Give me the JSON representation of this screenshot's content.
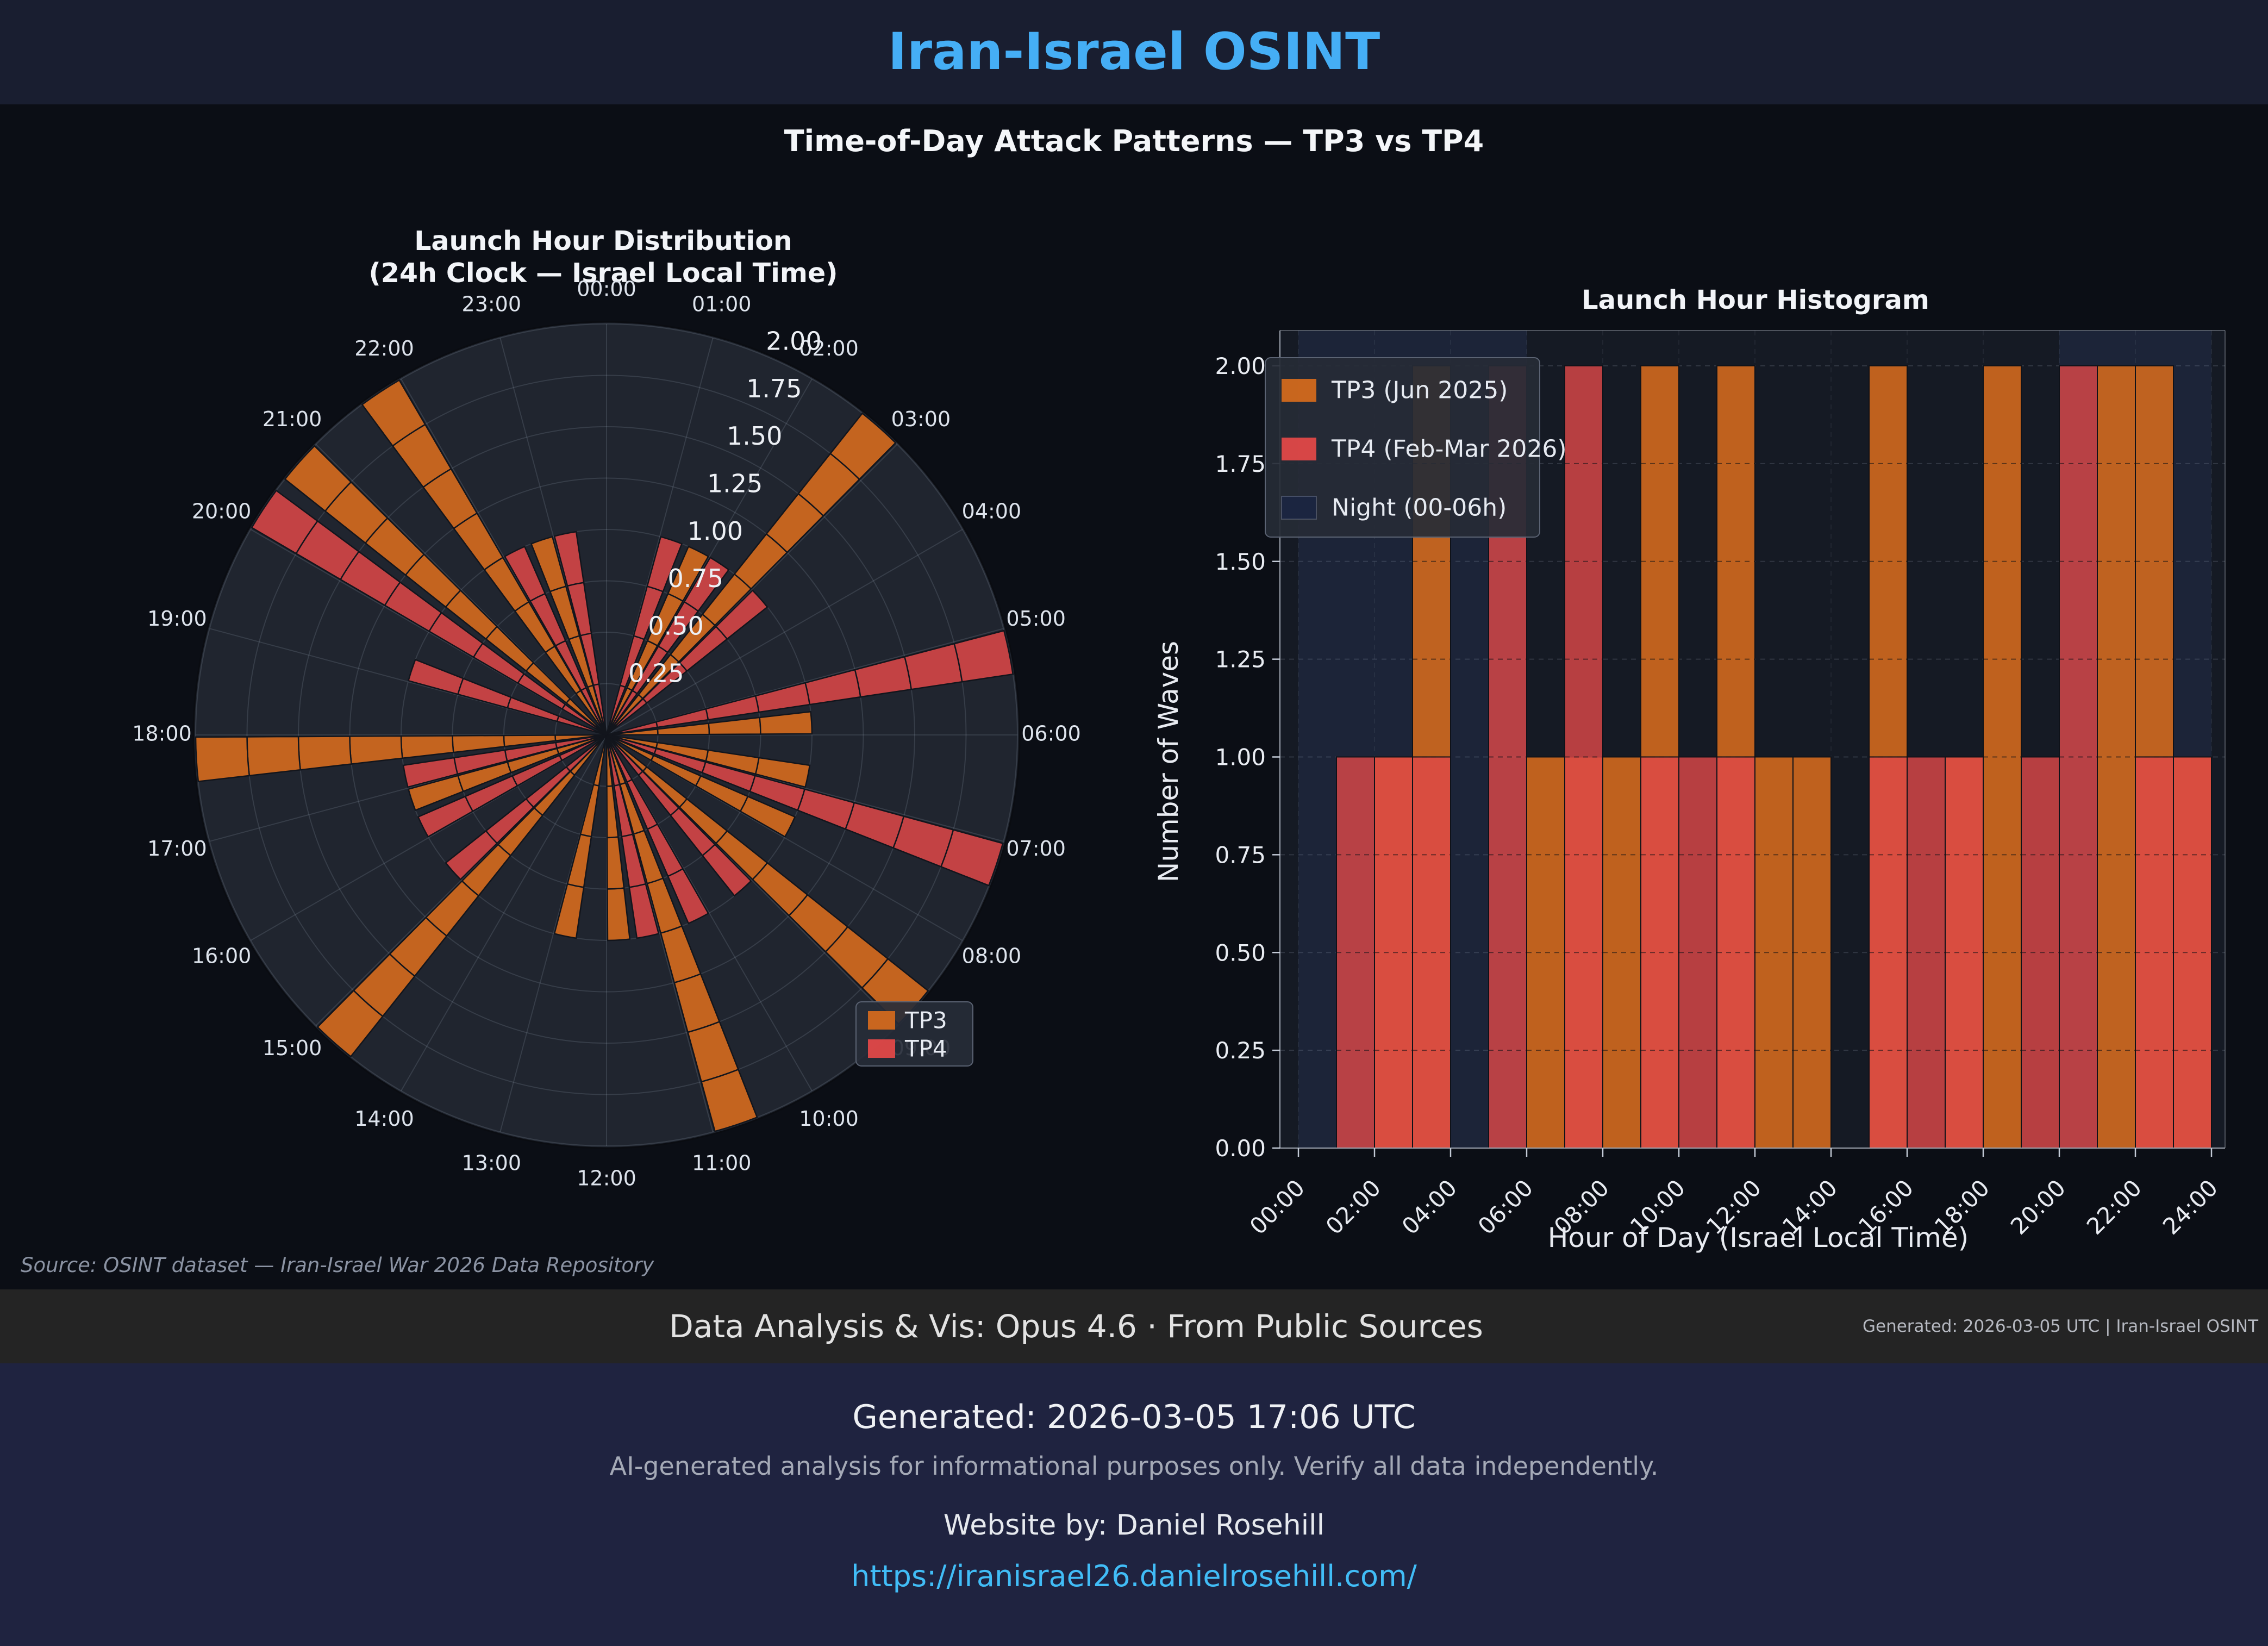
{
  "header": {
    "title": "Iran-Israel OSINT"
  },
  "subtitle": "Time-of-Day Attack Patterns — TP3 vs TP4",
  "chart_data": [
    {
      "type": "polar_bar",
      "title": "Launch Hour Distribution",
      "subtitle": "(24h Clock — Israel Local Time)",
      "hour_labels": [
        "00:00",
        "01:00",
        "02:00",
        "03:00",
        "04:00",
        "05:00",
        "06:00",
        "07:00",
        "08:00",
        "09:00",
        "10:00",
        "11:00",
        "12:00",
        "13:00",
        "14:00",
        "15:00",
        "16:00",
        "17:00",
        "18:00",
        "19:00",
        "20:00",
        "21:00",
        "22:00",
        "23:00"
      ],
      "r_ticks": [
        0.25,
        0.5,
        0.75,
        1.0,
        1.25,
        1.5,
        1.75,
        2.0
      ],
      "r_tick_labels": [
        "0.25",
        "0.50",
        "0.75",
        "1.00",
        "1.25",
        "1.50",
        "1.75",
        "2.00"
      ],
      "rlim": [
        0,
        2.0
      ],
      "legend": [
        "TP3",
        "TP4"
      ],
      "series": [
        {
          "name": "TP3",
          "color": "#d2691e",
          "values": [
            0,
            0,
            1,
            2,
            0,
            0,
            1,
            1,
            1,
            2,
            0,
            2,
            1,
            1,
            0,
            2,
            0,
            1,
            2,
            0,
            0,
            2,
            2,
            1
          ]
        },
        {
          "name": "TP4",
          "color": "#e04848",
          "values": [
            0,
            1,
            1,
            1,
            0,
            2,
            0,
            2,
            0,
            1,
            1,
            1,
            0,
            0,
            0,
            1,
            1,
            1,
            0,
            1,
            2,
            0,
            1,
            1
          ]
        }
      ]
    },
    {
      "type": "bar",
      "title": "Launch Hour Histogram",
      "xlabel": "Hour of Day (Israel Local Time)",
      "ylabel": "Number of Waves",
      "x_tick_labels": [
        "00:00",
        "02:00",
        "04:00",
        "06:00",
        "08:00",
        "10:00",
        "12:00",
        "14:00",
        "16:00",
        "18:00",
        "20:00",
        "22:00",
        "24:00"
      ],
      "y_tick_labels": [
        "0.00",
        "0.25",
        "0.50",
        "0.75",
        "1.00",
        "1.25",
        "1.50",
        "1.75",
        "2.00"
      ],
      "xlim": [
        0,
        24
      ],
      "ylim": [
        0,
        2.1
      ],
      "grid": true,
      "legend": [
        "TP3 (Jun 2025)",
        "TP4 (Feb-Mar 2026)",
        "Night (00-06h)"
      ],
      "night_bands": [
        [
          0,
          6
        ],
        [
          20,
          24
        ]
      ],
      "series": [
        {
          "name": "TP3 (Jun 2025)",
          "color": "#d2691e",
          "values": [
            0,
            0,
            1,
            2,
            0,
            0,
            1,
            1,
            1,
            2,
            0,
            2,
            1,
            1,
            0,
            2,
            0,
            1,
            2,
            0,
            0,
            2,
            2,
            1
          ]
        },
        {
          "name": "TP4 (Feb-Mar 2026)",
          "color": "#e04848",
          "values": [
            0,
            1,
            1,
            1,
            0,
            2,
            0,
            2,
            0,
            1,
            1,
            1,
            0,
            0,
            0,
            1,
            1,
            1,
            0,
            1,
            2,
            0,
            1,
            1
          ]
        }
      ]
    }
  ],
  "source_note": "Source: OSINT dataset — Iran-Israel War 2026 Data Repository",
  "attribution": {
    "main": "Data Analysis & Vis: Opus 4.6 · From Public Sources",
    "meta": "Generated: 2026-03-05 UTC | Iran-Israel OSINT"
  },
  "footer": {
    "generated": "Generated: 2026-03-05 17:06 UTC",
    "disclaimer": "AI-generated analysis for informational purposes only. Verify all data independently.",
    "website": "Website by: Daniel Rosehill",
    "url": "https://iranisrael26.danielrosehill.com/"
  },
  "colors": {
    "accent_title": "#45aef5",
    "tp3_orange": "#d2691e",
    "tp4_red": "#e04848",
    "night_band": "#1c2438",
    "night_swatch": "#1b2540",
    "polar_bg": "#20252f",
    "hist_bg": "#151a24",
    "grid": "#aeb9cc",
    "link": "#41bdf7"
  }
}
